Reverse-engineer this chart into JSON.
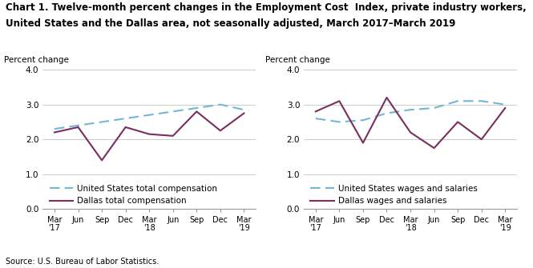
{
  "title_line1": "Chart 1. Twelve-month percent changes in the Employment Cost  Index, private industry workers,",
  "title_line2": "United States and the Dallas area, not seasonally adjusted, March 2017–March 2019",
  "source": "Source: U.S. Bureau of Labor Statistics.",
  "ylabel": "Percent change",
  "ylim": [
    0.0,
    4.0
  ],
  "yticks": [
    0.0,
    1.0,
    2.0,
    3.0,
    4.0
  ],
  "us_total_comp": [
    2.3,
    2.4,
    2.5,
    2.6,
    2.7,
    2.8,
    2.9,
    3.0,
    2.85
  ],
  "dallas_total_comp": [
    2.2,
    2.35,
    1.4,
    2.35,
    2.15,
    2.1,
    2.8,
    2.25,
    2.75
  ],
  "us_wages": [
    2.6,
    2.5,
    2.55,
    2.75,
    2.85,
    2.9,
    3.1,
    3.1,
    3.0
  ],
  "dallas_wages": [
    2.8,
    3.1,
    1.9,
    3.2,
    2.2,
    1.75,
    2.5,
    2.0,
    2.9
  ],
  "us_color": "#70b8d4",
  "dallas_color": "#7b2d5e",
  "legend1_labels": [
    "United States total compensation",
    "Dallas total compensation"
  ],
  "legend2_labels": [
    "United States wages and salaries",
    "Dallas wages and salaries"
  ],
  "title_fontsize": 8.5,
  "axis_label_fontsize": 7.5,
  "tick_fontsize": 7.5,
  "legend_fontsize": 7.5,
  "source_fontsize": 7.0
}
